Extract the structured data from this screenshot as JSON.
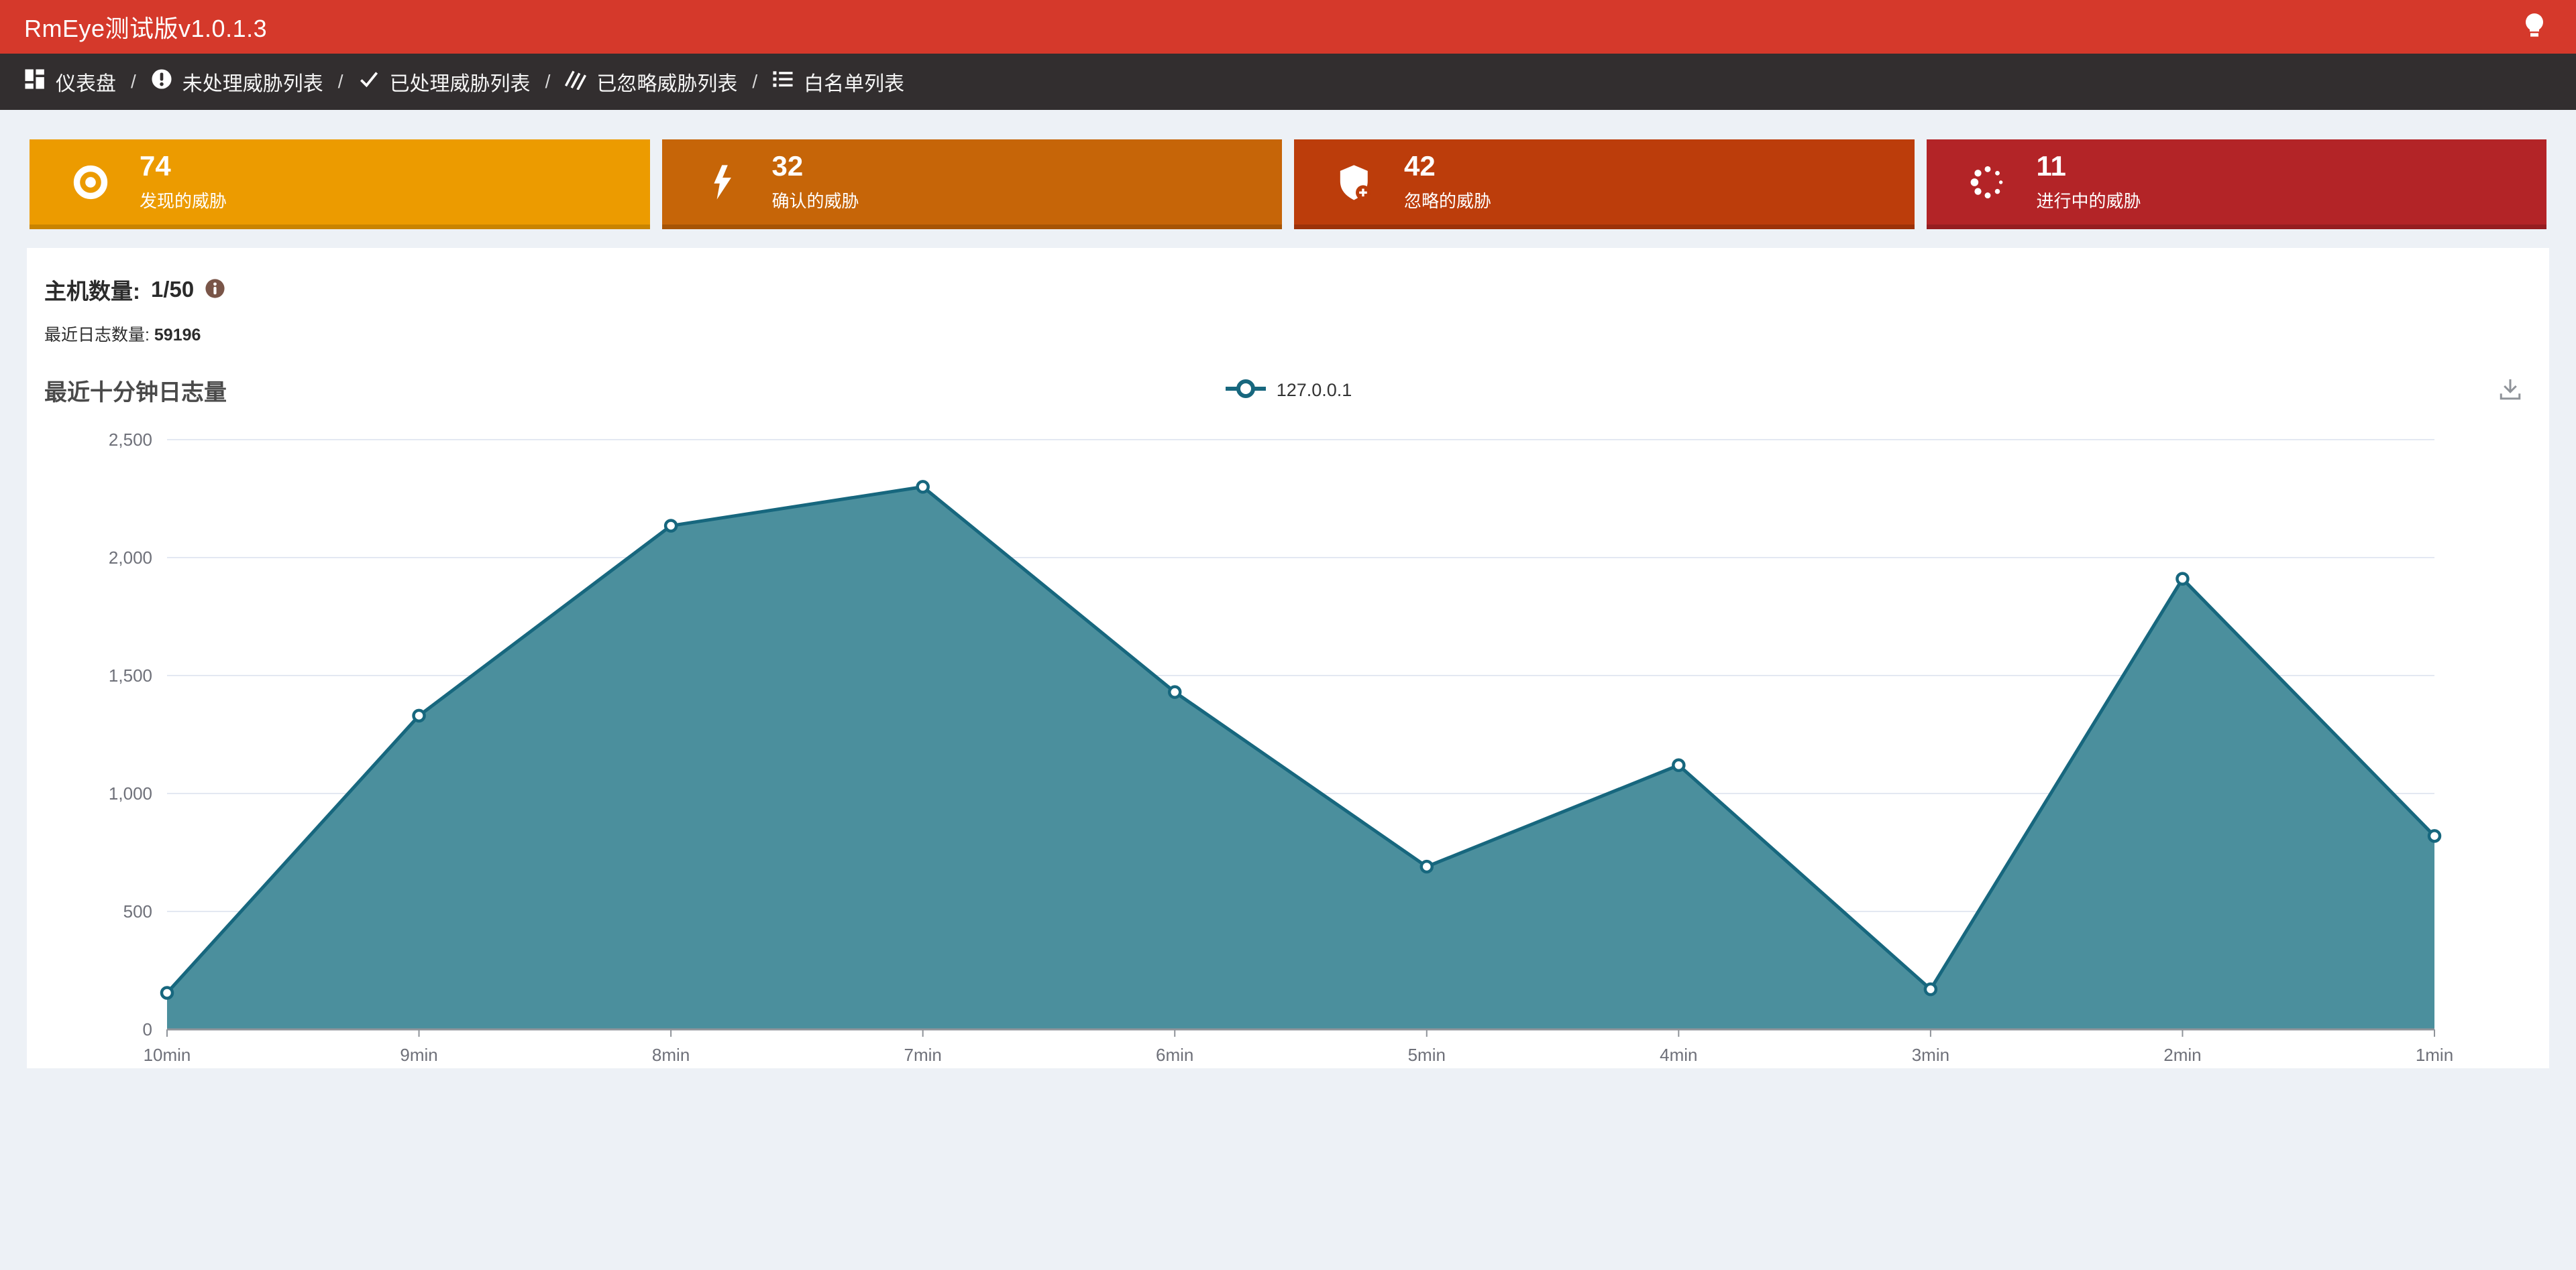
{
  "app": {
    "title": "RmEye测试版v1.0.1.3",
    "bulb_icon": "bulb-icon",
    "bar_color": "#D5392B",
    "nav_bar_color": "#322E2F"
  },
  "nav": {
    "separator": "/",
    "items": [
      {
        "label": "仪表盘",
        "icon": "dashboard-icon"
      },
      {
        "label": "未处理威胁列表",
        "icon": "exclamation-circle-icon"
      },
      {
        "label": "已处理威胁列表",
        "icon": "check-icon"
      },
      {
        "label": "已忽略威胁列表",
        "icon": "ignored-hatch-icon"
      },
      {
        "label": "白名单列表",
        "icon": "list-icon"
      }
    ]
  },
  "stat_cards": [
    {
      "value": "74",
      "label": "发现的威胁",
      "icon": "eye-icon",
      "color": "#EC9B00"
    },
    {
      "value": "32",
      "label": "确认的威胁",
      "icon": "bolt-icon",
      "color": "#C66508"
    },
    {
      "value": "42",
      "label": "忽略的威胁",
      "icon": "shield-plus-icon",
      "color": "#BC3D0B"
    },
    {
      "value": "11",
      "label": "进行中的威胁",
      "icon": "spinner-icon",
      "color": "#B32427"
    }
  ],
  "host_info": {
    "hosts_label": "主机数量:",
    "hosts_value": "1/50",
    "info_icon": "info-icon",
    "logs_label": "最近日志数量:",
    "logs_value": "59196"
  },
  "toolbox": {
    "download_icon": "download-icon"
  },
  "chart_data": {
    "type": "area",
    "title": "最近十分钟日志量",
    "legend": [
      "127.0.0.1"
    ],
    "legend_position": "top-center",
    "categories": [
      "10min",
      "9min",
      "8min",
      "7min",
      "6min",
      "5min",
      "4min",
      "3min",
      "2min",
      "1min"
    ],
    "series": [
      {
        "name": "127.0.0.1",
        "values": [
          155,
          1330,
          2135,
          2300,
          1430,
          690,
          1120,
          170,
          1910,
          820
        ]
      }
    ],
    "xlabel": "",
    "ylabel": "",
    "ylim": [
      0,
      2500
    ],
    "y_ticks": [
      0,
      500,
      1000,
      1500,
      2000,
      2500
    ],
    "grid": true,
    "line_color": "#17677E",
    "fill_color": "#4B8F9D",
    "marker": "hollow-circle"
  }
}
